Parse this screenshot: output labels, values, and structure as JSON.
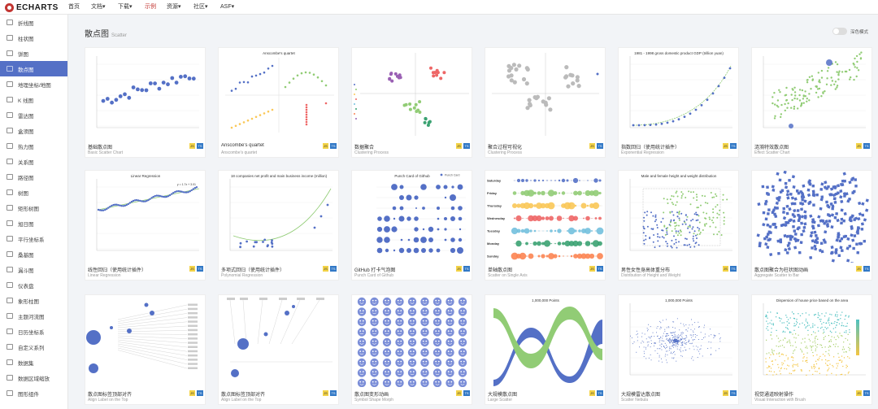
{
  "brand": {
    "name": "ECHARTS"
  },
  "nav": [
    "首页",
    "文档▾",
    "下载▾",
    "示例",
    "资源▾",
    "社区▾",
    "ASF▾"
  ],
  "sidebar": [
    "折线图",
    "柱状图",
    "饼图",
    "散点图",
    "地理坐标/地图",
    "K 线图",
    "雷达图",
    "盒须图",
    "热力图",
    "关系图",
    "路径图",
    "树图",
    "矩形树图",
    "旭日图",
    "平行坐标系",
    "桑基图",
    "漏斗图",
    "仪表盘",
    "象形柱图",
    "主题河流图",
    "日历坐标系",
    "自定义系列",
    "数据集",
    "数据区域缩放",
    "图形组件"
  ],
  "page": {
    "title": "散点图",
    "subtitle": "Scatter",
    "dark_mode": "深色模式"
  },
  "badges": {
    "js": "JS",
    "ts": "TS"
  },
  "cards": [
    {
      "title": "基础散点图",
      "sub": "Basic Scatter Chart"
    },
    {
      "title": "Anscombe's quartet",
      "sub": "Anscombe's quartet",
      "chart_title": "Anscombe's quartet"
    },
    {
      "title": "数据聚合",
      "sub": "Clustering Process"
    },
    {
      "title": "聚合过程可视化",
      "sub": "Clustering Process"
    },
    {
      "title": "指数回归（使用统计插件）",
      "sub": "Exponential Regression",
      "chart_title": "1981 - 1998 gross domestic product GDP (trillion yuan)"
    },
    {
      "title": "涟漪特效散点图",
      "sub": "Effect Scatter Chart"
    },
    {
      "title": "线性回归（使用统计插件）",
      "sub": "Linear Regression",
      "chart_title": "Linear Regression",
      "chart_label": "y = 1.7x + 3.01"
    },
    {
      "title": "多项式回归（使用统计插件）",
      "sub": "Polynomial Regression",
      "chart_title": "18 companies net profit and main business income (million)"
    },
    {
      "title": "GitHub 打卡气泡图",
      "sub": "Punch Card of Github",
      "chart_title": "Punch Card of Github",
      "chart_label": "Punch Card"
    },
    {
      "title": "单轴散点图",
      "sub": "Scatter on Single Axis",
      "chart_labels": [
        "Saturday",
        "Friday",
        "Thursday",
        "Wednesday",
        "Tuesday",
        "Monday",
        "Sunday"
      ]
    },
    {
      "title": "男性女性身高体重分布",
      "sub": "Distribution of Height and Weight",
      "chart_title": "Male and female height and weight distribution"
    },
    {
      "title": "散点图聚合为柱状图动画",
      "sub": "Aggregate Scatter to Bar"
    },
    {
      "title": "散点图标签顶部对齐",
      "sub": "Align Label on the Top"
    },
    {
      "title": "散点图标签顶部对齐",
      "sub": "Align Label on the Top"
    },
    {
      "title": "散点图变形动画",
      "sub": "Symbol Shape Morph"
    },
    {
      "title": "大规模散点图",
      "sub": "Large Scatter",
      "chart_title": "1,000,000 Points"
    },
    {
      "title": "大规模雷达散点图",
      "sub": "Scatter Nebula",
      "chart_title": "1,000,000 Points"
    },
    {
      "title": "视觉通道映射操作",
      "sub": "Visual Interaction with Brush",
      "chart_title": "Dispersion of house price based on the area"
    }
  ],
  "colors": {
    "accent": "#5470c6",
    "green": "#91cc75",
    "yellow": "#fac858",
    "red": "#ee6666",
    "brand_red": "#c23531"
  }
}
